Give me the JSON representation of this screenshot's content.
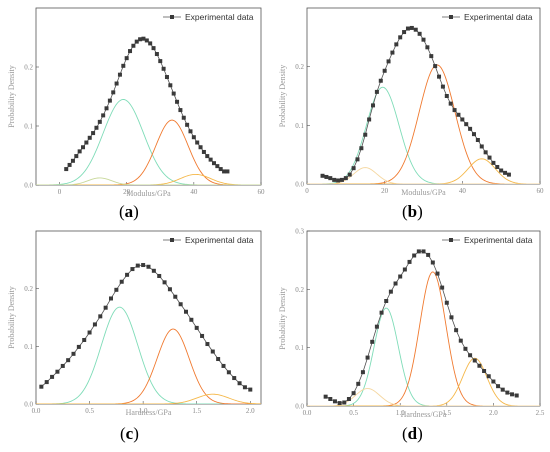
{
  "chart_data": [
    {
      "panel_label": "a",
      "type": "line",
      "xlabel": "Modulus/GPa",
      "ylabel": "Probability Density",
      "xlim": [
        -7,
        60
      ],
      "ylim": [
        0,
        0.3
      ],
      "xticks": [
        0,
        20,
        40,
        60
      ],
      "yticks": [
        0.0,
        0.1,
        0.2
      ],
      "legend": "top-right",
      "series": [
        {
          "name": "Experimental data",
          "style": "line+markers",
          "color": "#505050",
          "x": [
            2,
            3,
            4,
            5,
            6,
            7,
            8,
            9,
            10,
            11,
            12,
            13,
            14,
            15,
            16,
            17,
            18,
            19,
            20,
            21,
            22,
            23,
            24,
            25,
            26,
            27,
            28,
            29,
            30,
            31,
            32,
            33,
            34,
            35,
            36,
            37,
            38,
            39,
            40,
            41,
            42,
            43,
            44,
            45,
            46,
            47,
            48,
            49,
            50
          ],
          "y": [
            0.027,
            0.034,
            0.041,
            0.049,
            0.057,
            0.064,
            0.072,
            0.08,
            0.088,
            0.097,
            0.107,
            0.118,
            0.13,
            0.143,
            0.157,
            0.172,
            0.187,
            0.202,
            0.215,
            0.227,
            0.236,
            0.243,
            0.247,
            0.248,
            0.245,
            0.24,
            0.232,
            0.222,
            0.21,
            0.197,
            0.183,
            0.169,
            0.155,
            0.141,
            0.127,
            0.114,
            0.102,
            0.091,
            0.081,
            0.072,
            0.064,
            0.056,
            0.049,
            0.043,
            0.037,
            0.032,
            0.027,
            0.023,
            0.023
          ]
        },
        {
          "color": "#7fdcb8",
          "style": "line",
          "gauss": {
            "amp": 0.145,
            "mu": 19,
            "sigma": 6
          }
        },
        {
          "color": "#f07a30",
          "style": "line",
          "gauss": {
            "amp": 0.11,
            "mu": 33.5,
            "sigma": 4.8
          }
        },
        {
          "color": "#f5b84a",
          "style": "line",
          "gauss": {
            "amp": 0.018,
            "mu": 40.5,
            "sigma": 4.5
          }
        },
        {
          "color": "#c8d89a",
          "style": "line",
          "gauss": {
            "amp": 0.012,
            "mu": 12,
            "sigma": 3.5
          }
        }
      ]
    },
    {
      "panel_label": "b",
      "type": "line",
      "xlabel": "Modulus/GPa",
      "ylabel": "Probability Density",
      "xlim": [
        0,
        60
      ],
      "ylim": [
        0,
        0.3
      ],
      "xticks": [
        0,
        20,
        40,
        60
      ],
      "yticks": [
        0.0,
        0.1,
        0.2
      ],
      "legend": "top-right",
      "series": [
        {
          "name": "Experimental data",
          "style": "line+markers",
          "color": "#505050",
          "x": [
            4,
            5,
            6,
            7,
            8,
            9,
            10,
            11,
            12,
            13,
            14,
            15,
            16,
            17,
            18,
            19,
            20,
            21,
            22,
            23,
            24,
            25,
            26,
            27,
            28,
            29,
            30,
            31,
            32,
            33,
            34,
            35,
            36,
            37,
            38,
            39,
            40,
            41,
            42,
            43,
            44,
            45,
            46,
            47,
            48,
            49,
            50,
            51,
            52
          ],
          "y": [
            0.014,
            0.012,
            0.01,
            0.007,
            0.006,
            0.007,
            0.01,
            0.016,
            0.027,
            0.042,
            0.061,
            0.084,
            0.11,
            0.134,
            0.157,
            0.176,
            0.193,
            0.209,
            0.224,
            0.238,
            0.25,
            0.259,
            0.265,
            0.266,
            0.263,
            0.256,
            0.246,
            0.233,
            0.218,
            0.201,
            0.183,
            0.166,
            0.15,
            0.137,
            0.126,
            0.118,
            0.11,
            0.102,
            0.094,
            0.085,
            0.075,
            0.064,
            0.054,
            0.045,
            0.036,
            0.029,
            0.023,
            0.019,
            0.016
          ]
        },
        {
          "color": "#7fdcb8",
          "style": "line",
          "gauss": {
            "amp": 0.165,
            "mu": 19.5,
            "sigma": 4.2
          }
        },
        {
          "color": "#f07a30",
          "style": "line",
          "gauss": {
            "amp": 0.203,
            "mu": 33.5,
            "sigma": 4.6
          }
        },
        {
          "color": "#f5b84a",
          "style": "line",
          "gauss": {
            "amp": 0.043,
            "mu": 45,
            "sigma": 3.5
          }
        },
        {
          "color": "#f5d7a0",
          "style": "line",
          "gauss": {
            "amp": 0.028,
            "mu": 15,
            "sigma": 3
          }
        }
      ]
    },
    {
      "panel_label": "c",
      "type": "line",
      "xlabel": "Hardness/GPa",
      "ylabel": "Probability Density",
      "xlim": [
        0,
        2.1
      ],
      "ylim": [
        0,
        0.3
      ],
      "xticks": [
        0.0,
        0.5,
        1.0,
        1.5,
        2.0
      ],
      "yticks": [
        0.0,
        0.1,
        0.2
      ],
      "legend": "top-right",
      "series": [
        {
          "name": "Experimental data",
          "style": "line+markers",
          "color": "#505050",
          "x": [
            0.05,
            0.1,
            0.15,
            0.2,
            0.25,
            0.3,
            0.35,
            0.4,
            0.45,
            0.5,
            0.55,
            0.6,
            0.65,
            0.7,
            0.75,
            0.8,
            0.85,
            0.9,
            0.95,
            1.0,
            1.05,
            1.1,
            1.15,
            1.2,
            1.25,
            1.3,
            1.35,
            1.4,
            1.45,
            1.5,
            1.55,
            1.6,
            1.65,
            1.7,
            1.75,
            1.8,
            1.85,
            1.9,
            1.95,
            2.0
          ],
          "y": [
            0.03,
            0.038,
            0.047,
            0.056,
            0.066,
            0.076,
            0.087,
            0.099,
            0.111,
            0.124,
            0.138,
            0.152,
            0.167,
            0.183,
            0.198,
            0.212,
            0.224,
            0.234,
            0.24,
            0.241,
            0.238,
            0.231,
            0.222,
            0.211,
            0.199,
            0.186,
            0.173,
            0.16,
            0.146,
            0.132,
            0.118,
            0.104,
            0.091,
            0.078,
            0.066,
            0.055,
            0.045,
            0.036,
            0.029,
            0.025
          ]
        },
        {
          "color": "#7fdcb8",
          "style": "line",
          "gauss": {
            "amp": 0.168,
            "mu": 0.78,
            "sigma": 0.17
          }
        },
        {
          "color": "#f07a30",
          "style": "line",
          "gauss": {
            "amp": 0.13,
            "mu": 1.28,
            "sigma": 0.15
          }
        },
        {
          "color": "#f5b84a",
          "style": "line",
          "gauss": {
            "amp": 0.017,
            "mu": 1.65,
            "sigma": 0.15
          }
        }
      ]
    },
    {
      "panel_label": "d",
      "type": "line",
      "xlabel": "Hardness/GPa",
      "ylabel": "Probability Density",
      "xlim": [
        0,
        2.5
      ],
      "ylim": [
        0,
        0.3
      ],
      "xticks": [
        0.0,
        0.5,
        1.0,
        1.5,
        2.0,
        2.5
      ],
      "yticks": [
        0.0,
        0.1,
        0.2,
        0.3
      ],
      "legend": "top-right",
      "series": [
        {
          "name": "Experimental data",
          "style": "line+markers",
          "color": "#505050",
          "x": [
            0.2,
            0.25,
            0.3,
            0.35,
            0.4,
            0.45,
            0.5,
            0.55,
            0.6,
            0.65,
            0.7,
            0.75,
            0.8,
            0.85,
            0.9,
            0.95,
            1.0,
            1.05,
            1.1,
            1.15,
            1.2,
            1.25,
            1.3,
            1.35,
            1.4,
            1.45,
            1.5,
            1.55,
            1.6,
            1.65,
            1.7,
            1.75,
            1.8,
            1.85,
            1.9,
            1.95,
            2.0,
            2.05,
            2.1,
            2.15,
            2.2,
            2.25
          ],
          "y": [
            0.016,
            0.012,
            0.008,
            0.005,
            0.006,
            0.012,
            0.022,
            0.038,
            0.058,
            0.083,
            0.11,
            0.136,
            0.16,
            0.18,
            0.196,
            0.21,
            0.222,
            0.234,
            0.247,
            0.258,
            0.265,
            0.265,
            0.259,
            0.246,
            0.227,
            0.203,
            0.177,
            0.152,
            0.13,
            0.112,
            0.098,
            0.087,
            0.078,
            0.069,
            0.06,
            0.051,
            0.042,
            0.034,
            0.028,
            0.023,
            0.02,
            0.018
          ]
        },
        {
          "color": "#7fdcb8",
          "style": "line",
          "gauss": {
            "amp": 0.168,
            "mu": 0.85,
            "sigma": 0.13
          }
        },
        {
          "color": "#f07a30",
          "style": "line",
          "gauss": {
            "amp": 0.23,
            "mu": 1.35,
            "sigma": 0.14
          }
        },
        {
          "color": "#f5b84a",
          "style": "line",
          "gauss": {
            "amp": 0.082,
            "mu": 1.8,
            "sigma": 0.13
          }
        },
        {
          "color": "#f5d7a0",
          "style": "line",
          "gauss": {
            "amp": 0.03,
            "mu": 0.65,
            "sigma": 0.13
          }
        }
      ]
    }
  ]
}
